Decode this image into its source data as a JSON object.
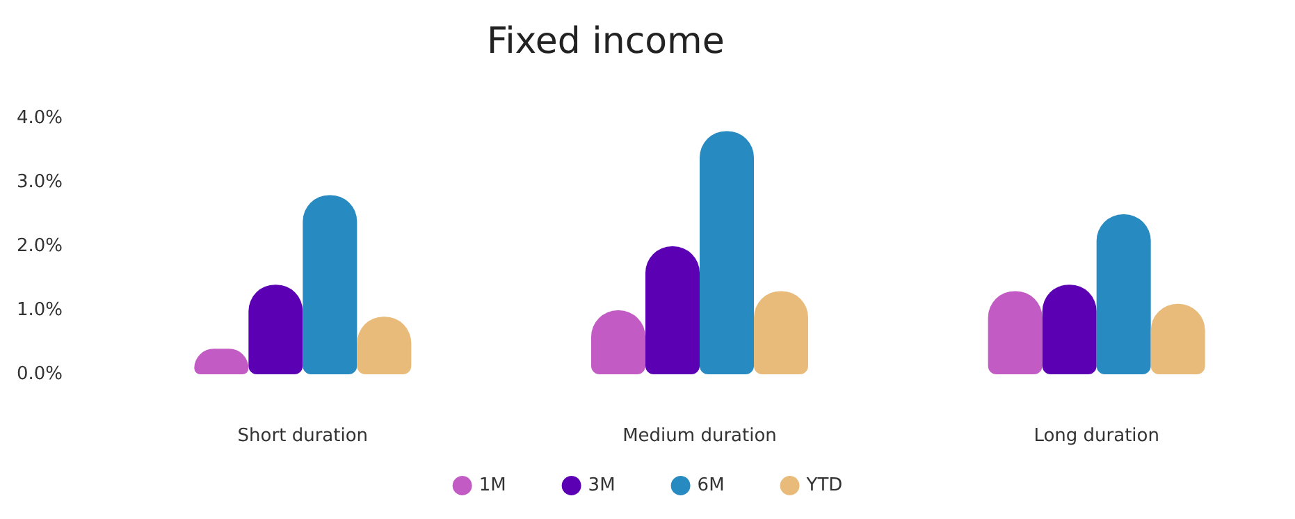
{
  "chart_data": {
    "type": "bar",
    "title": "Fixed income",
    "categories": [
      "Short duration",
      "Medium duration",
      "Long duration"
    ],
    "series": [
      {
        "name": "1M",
        "color": "#c25cc4",
        "values": [
          0.4,
          1.0,
          1.3
        ]
      },
      {
        "name": "3M",
        "color": "#5c00b4",
        "values": [
          1.4,
          2.0,
          1.4
        ]
      },
      {
        "name": "6M",
        "color": "#278ac1",
        "values": [
          2.8,
          3.8,
          2.5
        ]
      },
      {
        "name": "YTD",
        "color": "#e8bb7a",
        "values": [
          0.9,
          1.3,
          1.1
        ]
      }
    ],
    "ylim": [
      0,
      4
    ],
    "yticks": [
      {
        "value": 0,
        "label": "0.0%"
      },
      {
        "value": 1,
        "label": "1.0%"
      },
      {
        "value": 2,
        "label": "2.0%"
      },
      {
        "value": 3,
        "label": "3.0%"
      },
      {
        "value": 4,
        "label": "4.0%"
      }
    ],
    "grid": false,
    "legend": "bottom"
  }
}
